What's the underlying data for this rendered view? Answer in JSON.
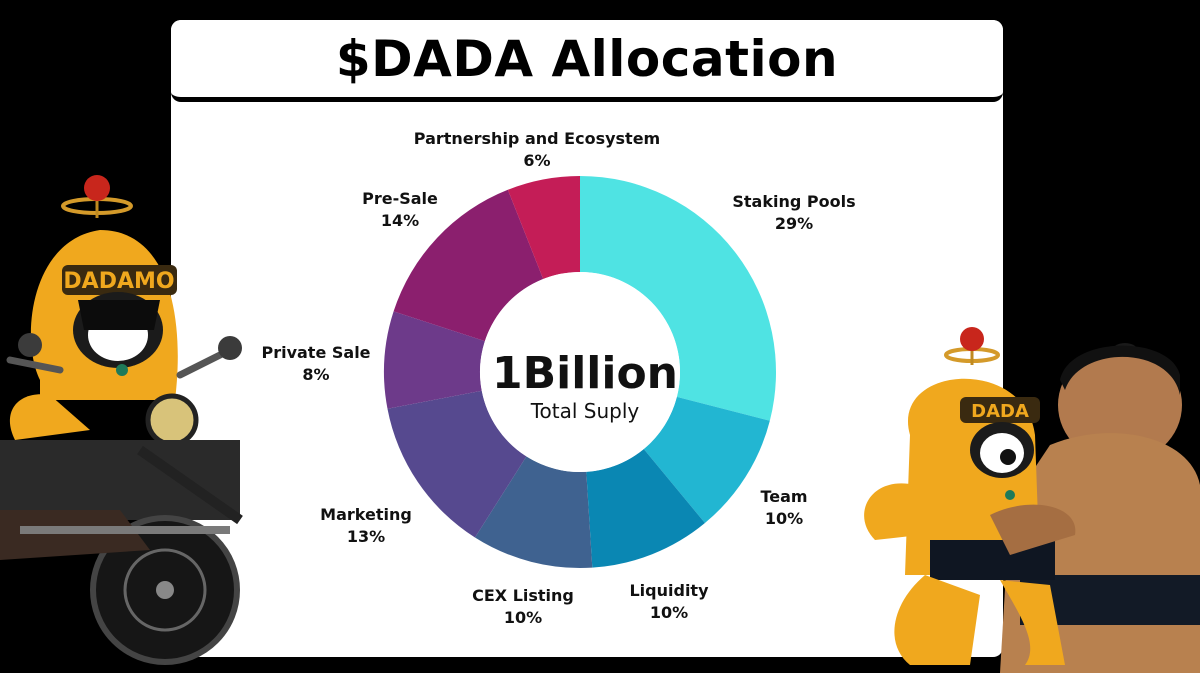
{
  "title": "$DADA Allocation",
  "center": {
    "value": "1Billion",
    "caption": "Total Suply"
  },
  "colors": {
    "Staking Pools": "#4fe3e3",
    "Team": "#22b6d2",
    "Liquidity": "#0a87b3",
    "CEX Listing": "#3f6290",
    "Marketing": "#56498f",
    "Private Sale": "#6d3a8a",
    "Pre-Sale": "#8b1f6e",
    "Partnership and Ecosystem": "#c41d57"
  },
  "chart_data": {
    "type": "pie",
    "title": "$DADA Allocation",
    "donut": true,
    "categories": [
      "Staking Pools",
      "Team",
      "Liquidity",
      "CEX Listing",
      "Marketing",
      "Private Sale",
      "Pre-Sale",
      "Partnership and Ecosystem"
    ],
    "values": [
      29,
      10,
      10,
      10,
      13,
      8,
      14,
      6
    ],
    "value_labels": [
      "29%",
      "10%",
      "10%",
      "10%",
      "13%",
      "8%",
      "14%",
      "6%"
    ]
  },
  "mascots": {
    "left": {
      "text": "DADAMO",
      "icon": "mascot-on-motorcycle"
    },
    "right": {
      "text": "DADA",
      "icon": "mascot-with-sumo"
    }
  }
}
